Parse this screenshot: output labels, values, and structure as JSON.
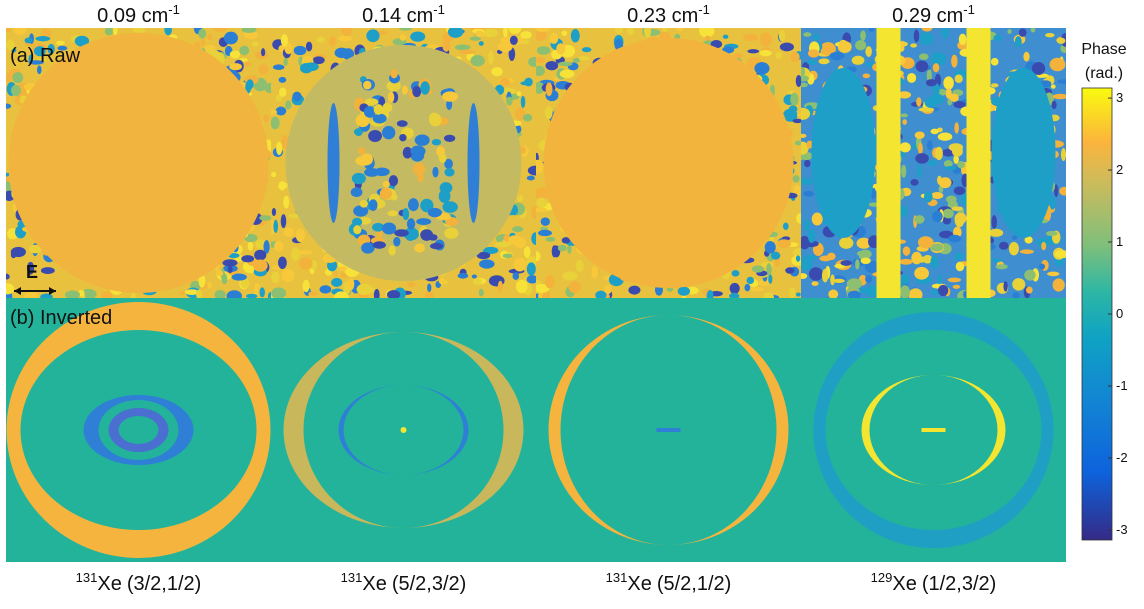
{
  "columns": [
    {
      "title": {
        "number": "0.09",
        "unit": "cm",
        "sup": "-1"
      },
      "caption": {
        "mass": "131",
        "element": "Xe",
        "states": "(3/2,1/2)"
      }
    },
    {
      "title": {
        "number": "0.14",
        "unit": "cm",
        "sup": "-1"
      },
      "caption": {
        "mass": "131",
        "element": "Xe",
        "states": "(5/2,3/2)"
      }
    },
    {
      "title": {
        "number": "0.23",
        "unit": "cm",
        "sup": "-1"
      },
      "caption": {
        "mass": "131",
        "element": "Xe",
        "states": "(5/2,1/2)"
      }
    },
    {
      "title": {
        "number": "0.29",
        "unit": "cm",
        "sup": "-1"
      },
      "caption": {
        "mass": "129",
        "element": "Xe",
        "states": "(1/2,3/2)"
      }
    }
  ],
  "rows": [
    "(a) Raw",
    "(b) Inverted"
  ],
  "field_label": "E",
  "colorbar": {
    "title": [
      "Phase",
      "(rad.)"
    ],
    "lim": [
      -3.14,
      3.14
    ],
    "ticks": [
      -3,
      -2,
      -1,
      0,
      1,
      2,
      3
    ]
  }
}
